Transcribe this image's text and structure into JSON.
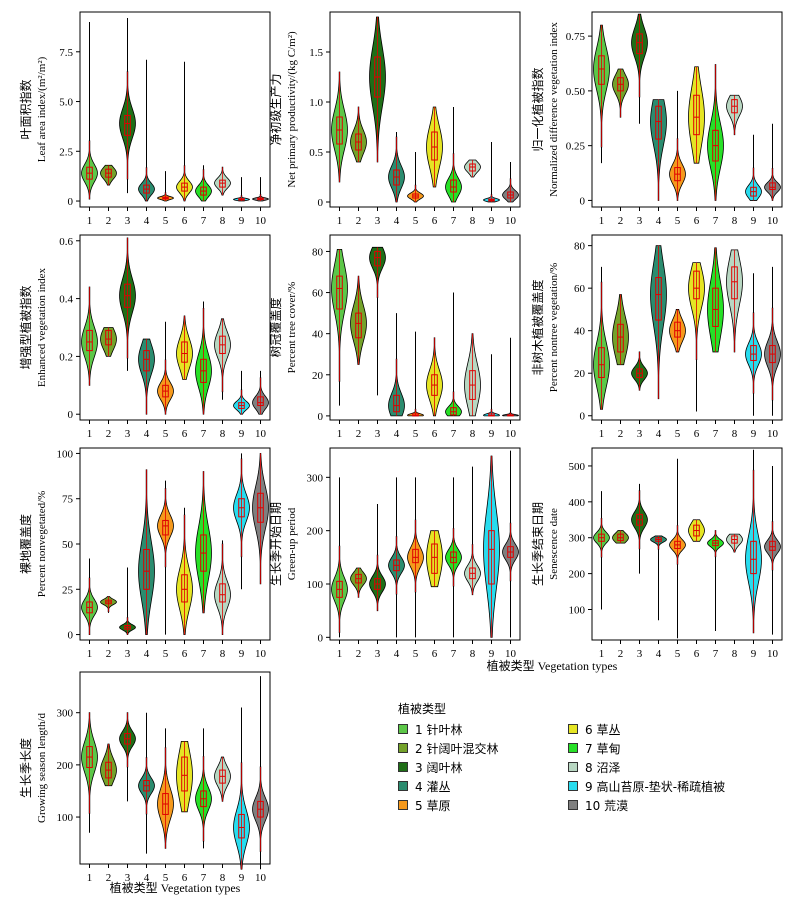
{
  "legend": {
    "title": "植被类型",
    "items": [
      "1 针叶林",
      "2 针阔叶混交林",
      "3 阔叶林",
      "4 灌丛",
      "5 草原",
      "6 草丛",
      "7 草甸",
      "8 沼泽",
      "9 高山苔原-垫状-稀疏植被",
      "10 荒漠"
    ]
  },
  "colors": [
    "#5cc748",
    "#74a22a",
    "#1f6e17",
    "#2b8c6f",
    "#f5991c",
    "#e5e524",
    "#27e027",
    "#b8d7c2",
    "#28dcee",
    "#7f7f7f"
  ],
  "shared_xlabel": "植被类型 Vegetation types",
  "chart_data": [
    {
      "type": "violin",
      "ylabel_cn": "叶面积指数",
      "ylabel_en": "Leaf area index/(m²/m²)",
      "categories": [
        "1",
        "2",
        "3",
        "4",
        "5",
        "6",
        "7",
        "8",
        "9",
        "10"
      ],
      "yticks": [
        "0",
        "2.5",
        "5.0",
        "7.5"
      ],
      "ylim": [
        -0.3,
        9.5
      ],
      "series": [
        {
          "values_median": [
            1.4,
            1.4,
            3.9,
            0.6,
            0.15,
            0.7,
            0.5,
            0.9,
            0.08,
            0.1
          ],
          "q1": [
            1.1,
            1.2,
            3.3,
            0.4,
            0.1,
            0.5,
            0.3,
            0.7,
            0.05,
            0.07
          ],
          "q3": [
            1.7,
            1.6,
            4.3,
            0.8,
            0.2,
            0.9,
            0.7,
            1.05,
            0.12,
            0.15
          ],
          "min": [
            0.1,
            0.8,
            0.4,
            0,
            0,
            0,
            0,
            0.3,
            0,
            0
          ],
          "max": [
            9.0,
            1.8,
            9.2,
            7.1,
            1.5,
            7.0,
            1.8,
            1.7,
            1.2,
            1.2
          ]
        }
      ]
    },
    {
      "type": "violin",
      "ylabel_cn": "净初级生产力",
      "ylabel_en": "Net primary productivity/(kg C/m²)",
      "categories": [
        "1",
        "2",
        "3",
        "4",
        "5",
        "6",
        "7",
        "8",
        "9",
        "10"
      ],
      "yticks": [
        "0",
        "0.5",
        "1.0",
        "1.5"
      ],
      "ylim": [
        -0.05,
        1.9
      ],
      "series": [
        {
          "values_median": [
            0.72,
            0.6,
            1.25,
            0.25,
            0.06,
            0.55,
            0.15,
            0.35,
            0.02,
            0.07
          ],
          "q1": [
            0.58,
            0.52,
            1.05,
            0.17,
            0.04,
            0.42,
            0.1,
            0.31,
            0.01,
            0.04
          ],
          "q3": [
            0.85,
            0.68,
            1.45,
            0.32,
            0.08,
            0.7,
            0.22,
            0.38,
            0.03,
            0.1
          ],
          "min": [
            0.2,
            0.4,
            0.4,
            0,
            0,
            0.15,
            0,
            0.25,
            0,
            0
          ],
          "max": [
            1.3,
            0.95,
            1.85,
            0.7,
            0.5,
            0.95,
            0.95,
            0.42,
            0.6,
            0.4
          ]
        }
      ]
    },
    {
      "type": "violin",
      "ylabel_cn": "归一化植被指数",
      "ylabel_en": "Normalized difference vegetation index",
      "categories": [
        "1",
        "2",
        "3",
        "4",
        "5",
        "6",
        "7",
        "8",
        "9",
        "10"
      ],
      "yticks": [
        "0",
        "0.25",
        "0.50",
        "0.75"
      ],
      "ylim": [
        -0.03,
        0.86
      ],
      "series": [
        {
          "values_median": [
            0.6,
            0.53,
            0.72,
            0.36,
            0.12,
            0.38,
            0.25,
            0.43,
            0.04,
            0.06
          ],
          "q1": [
            0.53,
            0.5,
            0.67,
            0.28,
            0.09,
            0.3,
            0.18,
            0.4,
            0.02,
            0.05
          ],
          "q3": [
            0.66,
            0.56,
            0.76,
            0.43,
            0.15,
            0.48,
            0.32,
            0.46,
            0.06,
            0.08
          ],
          "min": [
            0.17,
            0.38,
            0.35,
            0,
            0,
            0.17,
            0,
            0.3,
            0,
            0
          ],
          "max": [
            0.8,
            0.6,
            0.85,
            0.46,
            0.5,
            0.61,
            0.62,
            0.48,
            0.3,
            0.35
          ]
        }
      ]
    },
    {
      "type": "violin",
      "ylabel_cn": "增强型植被指数",
      "ylabel_en": "Enhanced vegetation index",
      "categories": [
        "1",
        "2",
        "3",
        "4",
        "5",
        "6",
        "7",
        "8",
        "9",
        "10"
      ],
      "yticks": [
        "0",
        "0.2",
        "0.4",
        "0.6"
      ],
      "ylim": [
        -0.02,
        0.62
      ],
      "series": [
        {
          "values_median": [
            0.25,
            0.26,
            0.41,
            0.19,
            0.08,
            0.21,
            0.15,
            0.24,
            0.03,
            0.04
          ],
          "q1": [
            0.22,
            0.24,
            0.37,
            0.15,
            0.06,
            0.18,
            0.11,
            0.21,
            0.02,
            0.03
          ],
          "q3": [
            0.29,
            0.29,
            0.45,
            0.22,
            0.1,
            0.25,
            0.19,
            0.27,
            0.04,
            0.06
          ],
          "min": [
            0.1,
            0.2,
            0.15,
            0,
            0,
            0.12,
            0,
            0.05,
            0,
            0
          ],
          "max": [
            0.44,
            0.3,
            0.61,
            0.26,
            0.32,
            0.34,
            0.39,
            0.33,
            0.15,
            0.15
          ]
        }
      ]
    },
    {
      "type": "violin",
      "ylabel_cn": "树冠覆盖度",
      "ylabel_en": "Percent tree cover/%",
      "categories": [
        "1",
        "2",
        "3",
        "4",
        "5",
        "6",
        "7",
        "8",
        "9",
        "10"
      ],
      "yticks": [
        "0",
        "20",
        "40",
        "60",
        "80"
      ],
      "ylim": [
        -2,
        88
      ],
      "series": [
        {
          "values_median": [
            62,
            45,
            77,
            5,
            0.3,
            15,
            2,
            15,
            0.3,
            0.2
          ],
          "q1": [
            52,
            38,
            73,
            2,
            0,
            10,
            0.5,
            8,
            0,
            0
          ],
          "q3": [
            68,
            50,
            80,
            10,
            1,
            20,
            4,
            22,
            1,
            0.5
          ],
          "min": [
            5,
            25,
            10,
            0,
            0,
            0,
            0,
            0,
            0,
            0
          ],
          "max": [
            81,
            68,
            82,
            50,
            41,
            38,
            60,
            40,
            30,
            38
          ]
        }
      ]
    },
    {
      "type": "violin",
      "ylabel_cn": "非树木植被覆盖度",
      "ylabel_en": "Percent nontree vegetation/%",
      "categories": [
        "1",
        "2",
        "3",
        "4",
        "5",
        "6",
        "7",
        "8",
        "9",
        "10"
      ],
      "yticks": [
        "0",
        "20",
        "40",
        "60",
        "80"
      ],
      "ylim": [
        -2,
        85
      ],
      "series": [
        {
          "values_median": [
            24,
            37,
            20,
            57,
            40,
            60,
            50,
            63,
            29,
            29
          ],
          "q1": [
            18,
            30,
            18,
            45,
            37,
            55,
            42,
            55,
            26,
            25
          ],
          "q3": [
            32,
            43,
            22,
            65,
            44,
            68,
            60,
            70,
            33,
            33
          ],
          "min": [
            3,
            24,
            12,
            8,
            30,
            2,
            30,
            30,
            0,
            0
          ],
          "max": [
            70,
            57,
            30,
            80,
            50,
            72,
            79,
            78,
            67,
            70
          ]
        }
      ]
    },
    {
      "type": "violin",
      "ylabel_cn": "裸地覆盖度",
      "ylabel_en": "Percent nonvegetated/%",
      "categories": [
        "1",
        "2",
        "3",
        "4",
        "5",
        "6",
        "7",
        "8",
        "9",
        "10"
      ],
      "yticks": [
        "0",
        "25",
        "50",
        "75",
        "100"
      ],
      "ylim": [
        -3,
        103
      ],
      "series": [
        {
          "values_median": [
            15,
            18,
            4,
            35,
            60,
            25,
            45,
            22,
            70,
            70
          ],
          "q1": [
            12,
            17,
            3,
            25,
            55,
            18,
            35,
            18,
            65,
            62
          ],
          "q3": [
            18,
            19,
            5,
            47,
            63,
            33,
            55,
            28,
            75,
            78
          ],
          "min": [
            0,
            12,
            0,
            0,
            0,
            0,
            12,
            0,
            25,
            28
          ],
          "max": [
            42,
            21,
            37,
            91,
            85,
            70,
            90,
            52,
            100,
            100
          ]
        }
      ]
    },
    {
      "type": "violin",
      "ylabel_cn": "生长季开始日期",
      "ylabel_en": "Green-up period",
      "categories": [
        "1",
        "2",
        "3",
        "4",
        "5",
        "6",
        "7",
        "8",
        "9",
        "10"
      ],
      "yticks": [
        "0",
        "100",
        "200",
        "300"
      ],
      "ylim": [
        -5,
        355
      ],
      "series": [
        {
          "values_median": [
            90,
            110,
            100,
            135,
            150,
            150,
            150,
            120,
            165,
            160
          ],
          "q1": [
            75,
            102,
            90,
            125,
            140,
            120,
            140,
            110,
            100,
            150
          ],
          "q3": [
            105,
            118,
            110,
            145,
            165,
            175,
            160,
            130,
            200,
            170
          ],
          "min": [
            0,
            75,
            50,
            0,
            0,
            95,
            0,
            80,
            0,
            0
          ],
          "max": [
            300,
            130,
            250,
            300,
            300,
            200,
            300,
            320,
            340,
            350
          ]
        }
      ]
    },
    {
      "type": "violin",
      "ylabel_cn": "生长季结束日期",
      "ylabel_en": "Senescence date",
      "categories": [
        "1",
        "2",
        "3",
        "4",
        "5",
        "6",
        "7",
        "8",
        "9",
        "10"
      ],
      "yticks": [
        "100",
        "200",
        "300",
        "400",
        "500"
      ],
      "ylim": [
        15,
        550
      ],
      "series": [
        {
          "values_median": [
            300,
            300,
            350,
            295,
            280,
            320,
            285,
            295,
            240,
            275
          ],
          "q1": [
            290,
            292,
            335,
            290,
            270,
            305,
            278,
            285,
            200,
            265
          ],
          "q3": [
            310,
            310,
            365,
            300,
            290,
            335,
            292,
            305,
            290,
            290
          ],
          "min": [
            100,
            285,
            200,
            70,
            20,
            290,
            40,
            260,
            35,
            30
          ],
          "max": [
            430,
            320,
            450,
            305,
            520,
            350,
            320,
            310,
            545,
            500
          ]
        }
      ]
    },
    {
      "type": "violin",
      "ylabel_cn": "生长季长度",
      "ylabel_en": "Growing season length/d",
      "categories": [
        "1",
        "2",
        "3",
        "4",
        "5",
        "6",
        "7",
        "8",
        "9",
        "10"
      ],
      "yticks": [
        "100",
        "200",
        "300"
      ],
      "ylim": [
        10,
        378
      ],
      "series": [
        {
          "values_median": [
            215,
            190,
            250,
            160,
            125,
            180,
            135,
            178,
            80,
            115
          ],
          "q1": [
            195,
            175,
            240,
            150,
            105,
            150,
            120,
            165,
            60,
            100
          ],
          "q3": [
            235,
            205,
            260,
            170,
            145,
            215,
            150,
            190,
            105,
            130
          ],
          "min": [
            70,
            160,
            130,
            30,
            40,
            110,
            40,
            130,
            0,
            0
          ],
          "max": [
            300,
            240,
            300,
            300,
            270,
            245,
            270,
            215,
            310,
            370
          ]
        }
      ]
    }
  ]
}
